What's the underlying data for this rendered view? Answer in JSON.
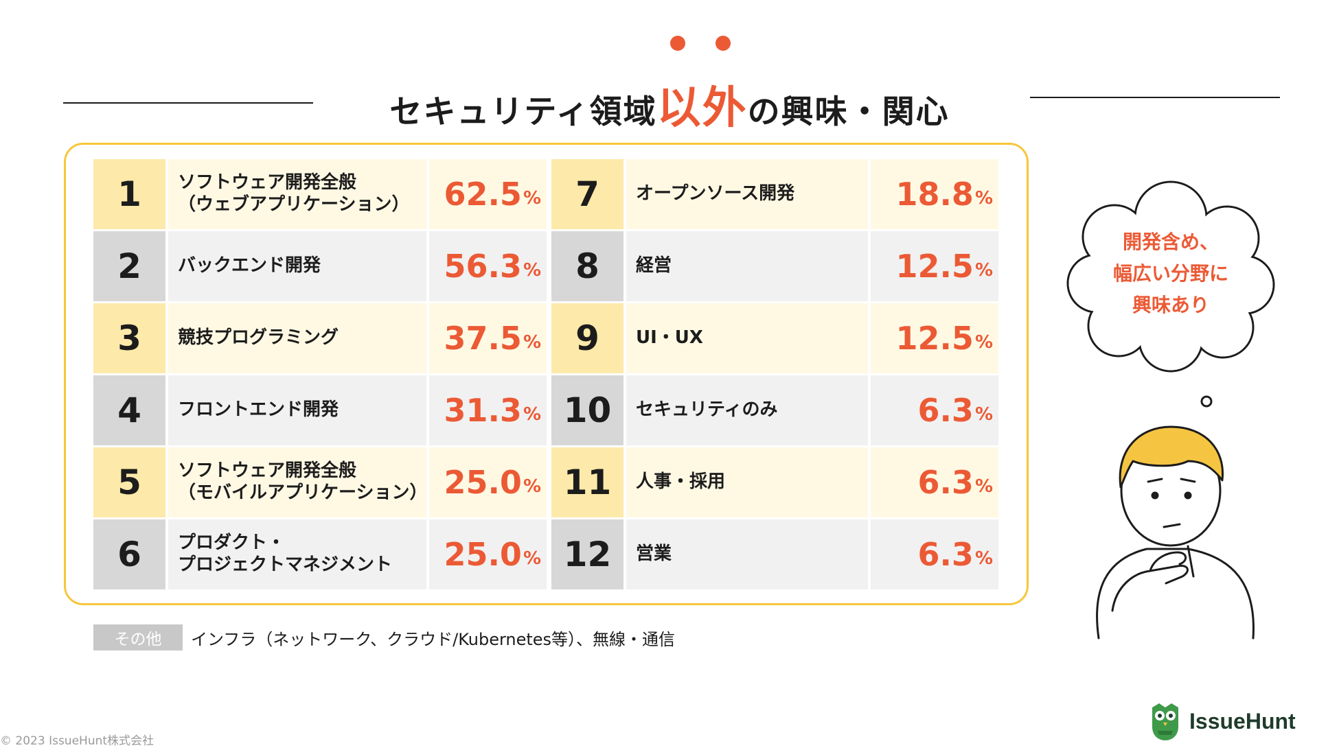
{
  "header": {
    "title_before": "セキュリティ領域",
    "title_accent": "以外",
    "title_after": "の興味・関心"
  },
  "ranking": [
    {
      "rank": "1",
      "label": "ソフトウェア開発全般\n（ウェブアプリケーション）",
      "percent": "62.5",
      "unit": "%"
    },
    {
      "rank": "2",
      "label": "バックエンド開発",
      "percent": "56.3",
      "unit": "%"
    },
    {
      "rank": "3",
      "label": "競技プログラミング",
      "percent": "37.5",
      "unit": "%"
    },
    {
      "rank": "4",
      "label": "フロントエンド開発",
      "percent": "31.3",
      "unit": "%"
    },
    {
      "rank": "5",
      "label": "ソフトウェア開発全般\n（モバイルアプリケーション）",
      "percent": "25.0",
      "unit": "%"
    },
    {
      "rank": "6",
      "label": "プロダクト・\nプロジェクトマネジメント",
      "percent": "25.0",
      "unit": "%"
    },
    {
      "rank": "7",
      "label": "オープンソース開発",
      "percent": "18.8",
      "unit": "%"
    },
    {
      "rank": "8",
      "label": "経営",
      "percent": "12.5",
      "unit": "%"
    },
    {
      "rank": "9",
      "label": "UI・UX",
      "percent": "12.5",
      "unit": "%"
    },
    {
      "rank": "10",
      "label": "セキュリティのみ",
      "percent": "6.3",
      "unit": "%"
    },
    {
      "rank": "11",
      "label": "人事・採用",
      "percent": "6.3",
      "unit": "%"
    },
    {
      "rank": "12",
      "label": "営業",
      "percent": "6.3",
      "unit": "%"
    }
  ],
  "others": {
    "tag": "その他",
    "text": "インフラ（ネットワーク、クラウド/Kubernetes等）、無線・通信"
  },
  "bubble": {
    "text": "開発含め、\n幅広い分野に\n興味あり"
  },
  "footer": {
    "copyright": "© 2023 IssueHunt株式会社",
    "brand": "IssueHunt"
  },
  "colors": {
    "accent": "#eb5a35",
    "frame": "#f7c63b",
    "row_yellow": "#fff9e4",
    "row_gray": "#f1f1f1",
    "hair": "#f5c542",
    "logo_green": "#3f9a4a"
  },
  "icons": {
    "illustration": "thinking-person-icon",
    "bubble": "thought-cloud-icon",
    "logo": "owl-logo-icon"
  }
}
